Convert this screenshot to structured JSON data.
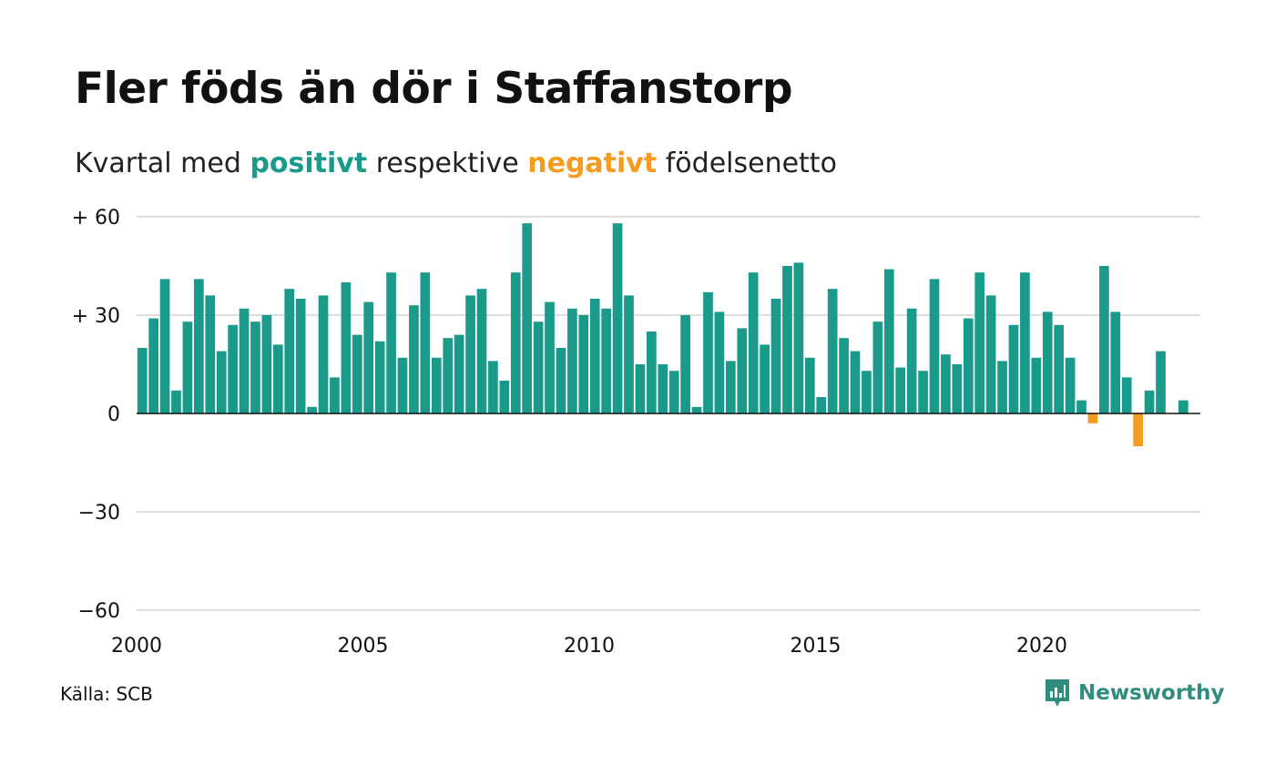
{
  "title": "Fler föds än dör i Staffanstorp",
  "subtitle": {
    "prefix": "Kvartal med",
    "positive": "positivt",
    "middle": "respektive",
    "negative": "negativt",
    "suffix": "födelsenetto"
  },
  "source": "Källa: SCB",
  "brand": "Newsworthy",
  "colors": {
    "positive": "#1a9a8a",
    "negative": "#f39c1f",
    "grid": "#dddddd",
    "zero_line": "#111111",
    "brand": "#2f8c7f"
  },
  "chart_data": {
    "type": "bar",
    "title": "Fler föds än dör i Staffanstorp",
    "subtitle": "Kvartal med positivt respektive negativt födelsenetto",
    "xlabel": "",
    "ylabel": "",
    "ylim": [
      -60,
      60
    ],
    "xlim": [
      2000,
      2023.5
    ],
    "yticks": [
      {
        "value": 60,
        "label": "+ 60"
      },
      {
        "value": 30,
        "label": "+ 30"
      },
      {
        "value": 0,
        "label": "0"
      },
      {
        "value": -30,
        "label": "−30"
      },
      {
        "value": -60,
        "label": "−60"
      }
    ],
    "xticks": [
      {
        "value": 2000,
        "label": "2000"
      },
      {
        "value": 2005,
        "label": "2005"
      },
      {
        "value": 2010,
        "label": "2010"
      },
      {
        "value": 2015,
        "label": "2015"
      },
      {
        "value": 2020,
        "label": "2020"
      }
    ],
    "grid": true,
    "legend": "none",
    "start_year": 2000,
    "periods_per_year": 4,
    "values": [
      20,
      29,
      41,
      7,
      28,
      41,
      36,
      19,
      27,
      32,
      28,
      30,
      21,
      38,
      35,
      2,
      36,
      11,
      40,
      24,
      34,
      22,
      43,
      17,
      33,
      43,
      17,
      23,
      24,
      36,
      38,
      16,
      10,
      43,
      58,
      28,
      34,
      20,
      32,
      30,
      35,
      32,
      58,
      36,
      15,
      25,
      15,
      13,
      30,
      2,
      37,
      31,
      16,
      26,
      43,
      21,
      35,
      45,
      46,
      17,
      5,
      38,
      23,
      19,
      13,
      28,
      44,
      14,
      32,
      13,
      41,
      18,
      15,
      29,
      43,
      36,
      16,
      27,
      43,
      17,
      31,
      27,
      17,
      4,
      -3,
      45,
      31,
      11,
      -10,
      7,
      19,
      null,
      4
    ]
  }
}
